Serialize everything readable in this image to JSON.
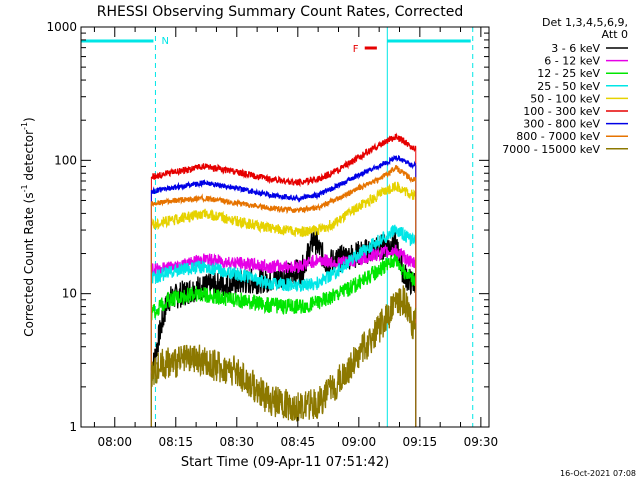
{
  "chart_data": {
    "type": "line",
    "title": "RHESSI Observing Summary Count Rates, Corrected",
    "xlabel": "Start Time (09-Apr-11 07:51:42)",
    "ylabel": "Corrected Count Rate (s",
    "ylabel_sup1": "-1",
    "ylabel_mid": " detector",
    "ylabel_sup2": "-1",
    "ylabel_end": ")",
    "y_scale": "log",
    "ylim": [
      1,
      1000
    ],
    "xlim": [
      "07:51:42",
      "09:32:00"
    ],
    "x_ticks": [
      "08:00",
      "08:15",
      "08:30",
      "08:45",
      "09:00",
      "09:15",
      "09:30"
    ],
    "y_ticks": [
      "1",
      "10",
      "100",
      "1000"
    ],
    "legend_header": [
      "Det 1,3,4,5,6,9,",
      "Att 0"
    ],
    "legend_position": "right",
    "footer_date": "16-Oct-2021 07:08",
    "markers": {
      "night_label": "N",
      "flare_label": "F",
      "night_intervals": [
        [
          "07:51:42",
          "08:10:00"
        ],
        [
          "09:07:00",
          "09:28:00"
        ]
      ],
      "flare_interval": [
        "08:58:30",
        "09:00:30"
      ]
    },
    "data_start": "08:09:00",
    "data_end": "09:14:00",
    "series": [
      {
        "name": "3 - 6 keV",
        "color": "#000000",
        "points": [
          [
            "08:09:00",
            2.5
          ],
          [
            "08:11:00",
            5
          ],
          [
            "08:13:00",
            9
          ],
          [
            "08:20:00",
            11
          ],
          [
            "08:30:00",
            12
          ],
          [
            "08:40:00",
            13
          ],
          [
            "08:46:00",
            15
          ],
          [
            "08:49:00",
            26
          ],
          [
            "08:52:00",
            17
          ],
          [
            "09:00:00",
            20
          ],
          [
            "09:05:00",
            22
          ],
          [
            "09:09:00",
            24
          ],
          [
            "09:11:00",
            14
          ],
          [
            "09:13:00",
            12
          ]
        ]
      },
      {
        "name": "6 - 12 keV",
        "color": "#e600e6",
        "points": [
          [
            "08:09:00",
            15
          ],
          [
            "08:15:00",
            16
          ],
          [
            "08:22:00",
            18
          ],
          [
            "08:30:00",
            17
          ],
          [
            "08:38:00",
            16
          ],
          [
            "08:45:00",
            16
          ],
          [
            "08:50:00",
            18
          ],
          [
            "08:55:00",
            17
          ],
          [
            "09:00:00",
            18
          ],
          [
            "09:05:00",
            20
          ],
          [
            "09:09:00",
            21
          ],
          [
            "09:11:00",
            19
          ],
          [
            "09:13:00",
            17
          ]
        ]
      },
      {
        "name": "12 - 25 keV",
        "color": "#00e600",
        "points": [
          [
            "08:09:00",
            7
          ],
          [
            "08:13:00",
            9
          ],
          [
            "08:20:00",
            10
          ],
          [
            "08:30:00",
            9
          ],
          [
            "08:38:00",
            8.2
          ],
          [
            "08:45:00",
            8
          ],
          [
            "08:50:00",
            8.5
          ],
          [
            "08:55:00",
            10
          ],
          [
            "09:00:00",
            12
          ],
          [
            "09:05:00",
            15
          ],
          [
            "09:09:00",
            18
          ],
          [
            "09:11:00",
            15
          ],
          [
            "09:13:00",
            13
          ]
        ]
      },
      {
        "name": "25 - 50 keV",
        "color": "#00e6e6",
        "points": [
          [
            "08:09:00",
            13
          ],
          [
            "08:15:00",
            15
          ],
          [
            "08:22:00",
            16
          ],
          [
            "08:30:00",
            14
          ],
          [
            "08:38:00",
            12
          ],
          [
            "08:45:00",
            11.5
          ],
          [
            "08:50:00",
            12
          ],
          [
            "08:55:00",
            15
          ],
          [
            "09:00:00",
            20
          ],
          [
            "09:05:00",
            25
          ],
          [
            "09:09:00",
            30
          ],
          [
            "09:11:00",
            28
          ],
          [
            "09:13:00",
            25
          ]
        ]
      },
      {
        "name": "50 - 100 keV",
        "color": "#e6d200",
        "points": [
          [
            "08:09:00",
            33
          ],
          [
            "08:15:00",
            36
          ],
          [
            "08:22:00",
            40
          ],
          [
            "08:30:00",
            35
          ],
          [
            "08:38:00",
            31
          ],
          [
            "08:45:00",
            29
          ],
          [
            "08:50:00",
            30
          ],
          [
            "08:55:00",
            35
          ],
          [
            "09:00:00",
            45
          ],
          [
            "09:05:00",
            55
          ],
          [
            "09:09:00",
            65
          ],
          [
            "09:11:00",
            60
          ],
          [
            "09:13:00",
            55
          ]
        ]
      },
      {
        "name": "100 - 300 keV",
        "color": "#e60000",
        "points": [
          [
            "08:09:00",
            75
          ],
          [
            "08:15:00",
            82
          ],
          [
            "08:22:00",
            90
          ],
          [
            "08:30:00",
            82
          ],
          [
            "08:38:00",
            72
          ],
          [
            "08:45:00",
            68
          ],
          [
            "08:50:00",
            72
          ],
          [
            "08:55:00",
            85
          ],
          [
            "09:00:00",
            105
          ],
          [
            "09:05:00",
            130
          ],
          [
            "09:09:00",
            150
          ],
          [
            "09:11:00",
            140
          ],
          [
            "09:13:00",
            125
          ]
        ]
      },
      {
        "name": "300 - 800 keV",
        "color": "#0000e6",
        "points": [
          [
            "08:09:00",
            58
          ],
          [
            "08:15:00",
            63
          ],
          [
            "08:22:00",
            68
          ],
          [
            "08:30:00",
            62
          ],
          [
            "08:38:00",
            55
          ],
          [
            "08:45:00",
            52
          ],
          [
            "08:50:00",
            55
          ],
          [
            "08:55:00",
            65
          ],
          [
            "09:00:00",
            78
          ],
          [
            "09:05:00",
            90
          ],
          [
            "09:09:00",
            105
          ],
          [
            "09:11:00",
            100
          ],
          [
            "09:13:00",
            92
          ]
        ]
      },
      {
        "name": "800 - 7000 keV",
        "color": "#e67300",
        "points": [
          [
            "08:09:00",
            47
          ],
          [
            "08:15:00",
            50
          ],
          [
            "08:22:00",
            52
          ],
          [
            "08:30:00",
            48
          ],
          [
            "08:38:00",
            44
          ],
          [
            "08:45:00",
            42
          ],
          [
            "08:50:00",
            44
          ],
          [
            "08:55:00",
            52
          ],
          [
            "09:00:00",
            62
          ],
          [
            "09:05:00",
            72
          ],
          [
            "09:09:00",
            88
          ],
          [
            "09:11:00",
            80
          ],
          [
            "09:13:00",
            72
          ]
        ]
      },
      {
        "name": "7000 - 15000 keV",
        "color": "#8c7800",
        "points": [
          [
            "08:09:00",
            2.5
          ],
          [
            "08:12:00",
            3
          ],
          [
            "08:20:00",
            3.2
          ],
          [
            "08:30:00",
            2.6
          ],
          [
            "08:38:00",
            1.6
          ],
          [
            "08:45:00",
            1.4
          ],
          [
            "08:50:00",
            1.5
          ],
          [
            "08:55:00",
            2.2
          ],
          [
            "09:00:00",
            3.5
          ],
          [
            "09:05:00",
            5.5
          ],
          [
            "09:09:00",
            8.5
          ],
          [
            "09:11:00",
            9
          ],
          [
            "09:13:00",
            6
          ]
        ]
      }
    ]
  }
}
